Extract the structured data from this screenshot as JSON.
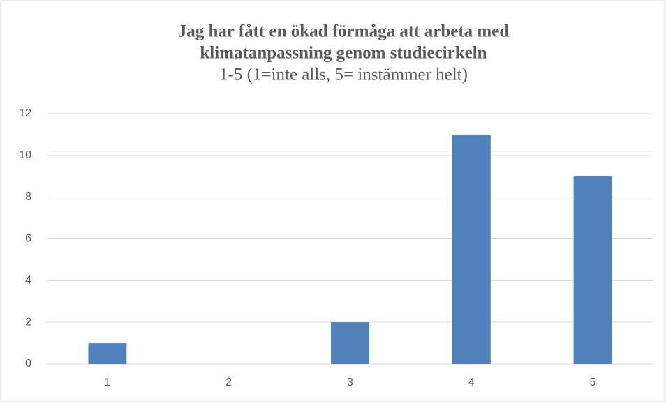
{
  "chart_data": {
    "type": "bar",
    "title": [
      "Jag har fått en ökad förmåga att arbeta med",
      "klimatanpassning genom studiecirkeln"
    ],
    "subtitle": "1-5 (1=inte alls, 5= instämmer helt)",
    "categories": [
      "1",
      "2",
      "3",
      "4",
      "5"
    ],
    "values": [
      1,
      0,
      2,
      11,
      9
    ],
    "color": "#4f81bd",
    "ylim": [
      0,
      12
    ],
    "yticks": [
      0,
      2,
      4,
      6,
      8,
      10,
      12
    ],
    "grid": true
  }
}
